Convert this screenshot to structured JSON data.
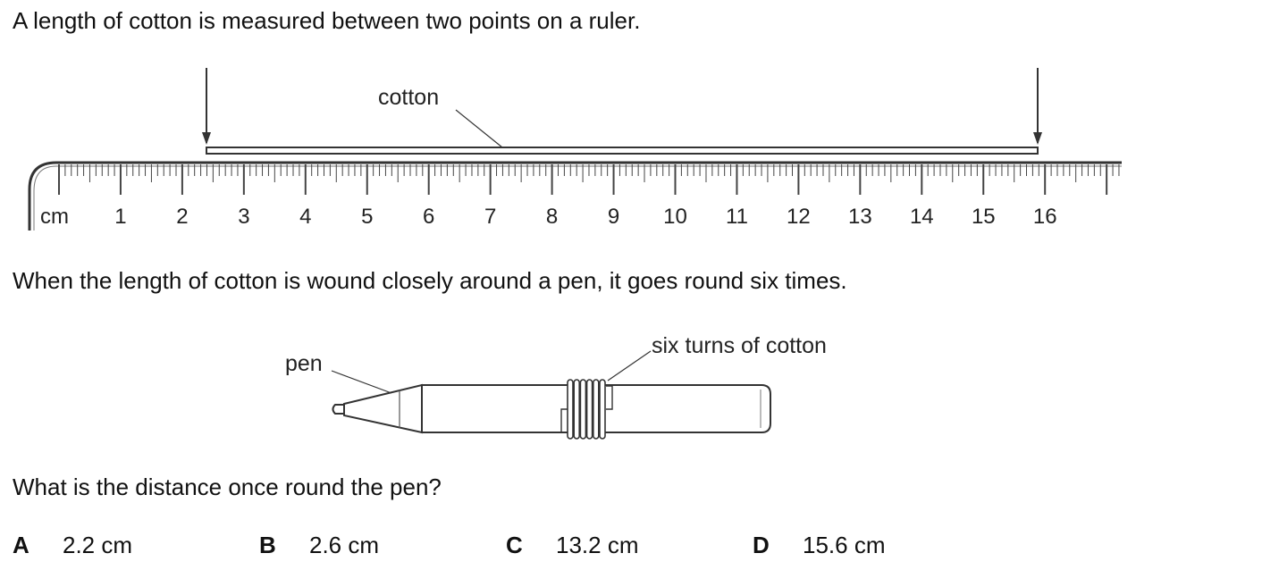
{
  "question": {
    "intro": "A length of cotton is measured between two points on a ruler.",
    "wound": "When the length of cotton is wound closely around a pen, it goes round six times.",
    "prompt": "What is the distance once round the pen?"
  },
  "ruler": {
    "unit_label": "cm",
    "numbers": [
      "1",
      "2",
      "3",
      "4",
      "5",
      "6",
      "7",
      "8",
      "9",
      "10",
      "11",
      "12",
      "13",
      "14",
      "15",
      "16"
    ],
    "cotton_label": "cotton",
    "cotton_start_cm": 2.4,
    "cotton_end_cm": 15.6
  },
  "pen_figure": {
    "pen_label": "pen",
    "turns_label": "six turns of cotton"
  },
  "options": [
    {
      "letter": "A",
      "text": "2.2 cm"
    },
    {
      "letter": "B",
      "text": "2.6 cm"
    },
    {
      "letter": "C",
      "text": "13.2 cm"
    },
    {
      "letter": "D",
      "text": "15.6 cm"
    }
  ]
}
